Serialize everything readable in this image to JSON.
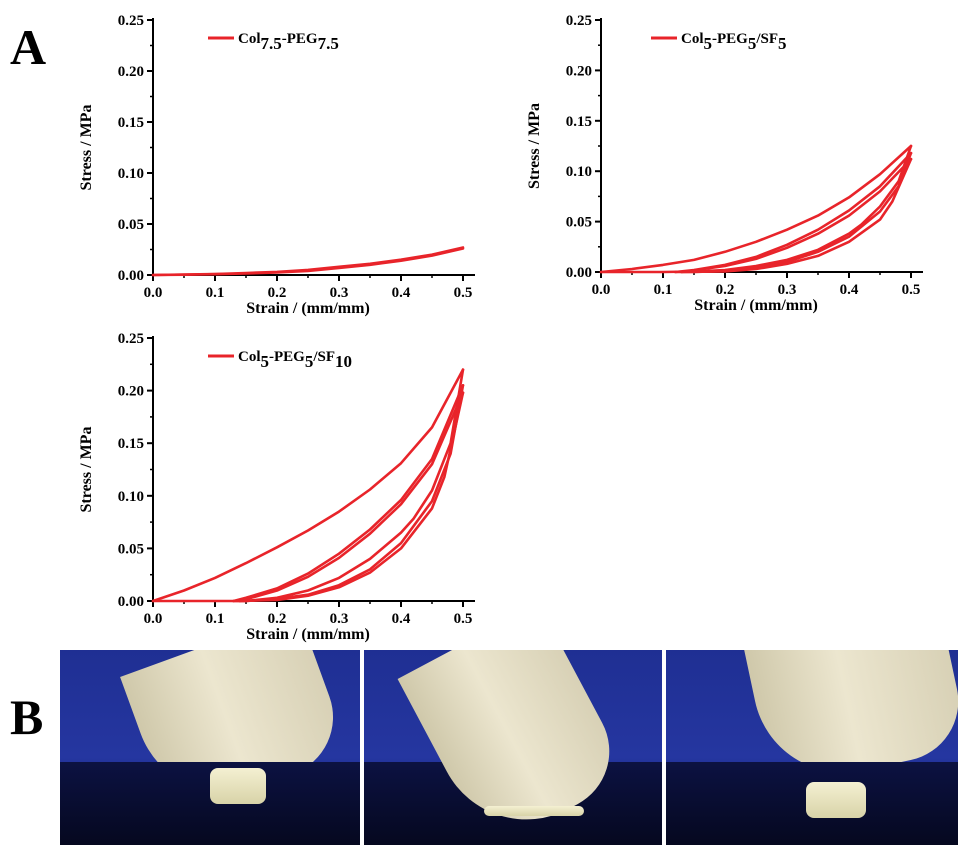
{
  "panel_labels": {
    "a": "A",
    "b": "B"
  },
  "colors": {
    "series": "#e8242a",
    "axis": "#000000"
  },
  "chart_data": [
    {
      "type": "line",
      "panel": "A",
      "legend": {
        "base": "Col",
        "sub1": "7.5",
        "mid": "-PEG",
        "sub2": "7.5",
        "tail": "",
        "sub3": ""
      },
      "legend_position": "top-left",
      "xlabel": "Strain / (mm/mm)",
      "ylabel": "Stress / MPa",
      "xlim": [
        0,
        0.5
      ],
      "ylim": [
        0,
        0.25
      ],
      "xticks": [
        "0.0",
        "0.1",
        "0.2",
        "0.3",
        "0.4",
        "0.5"
      ],
      "yticks": [
        "0.00",
        "0.05",
        "0.10",
        "0.15",
        "0.20",
        "0.25"
      ],
      "cycles": [
        {
          "x": [
            0,
            0.05,
            0.1,
            0.15,
            0.2,
            0.25,
            0.3,
            0.35,
            0.4,
            0.45,
            0.5
          ],
          "y": [
            0,
            0.0005,
            0.001,
            0.002,
            0.003,
            0.005,
            0.008,
            0.011,
            0.015,
            0.02,
            0.027
          ]
        },
        {
          "x": [
            0.5,
            0.45,
            0.4,
            0.35,
            0.3,
            0.25,
            0.2,
            0.15,
            0.1,
            0.05,
            0
          ],
          "y": [
            0.026,
            0.019,
            0.014,
            0.01,
            0.007,
            0.004,
            0.0025,
            0.0015,
            0.0008,
            0.0003,
            0
          ]
        }
      ]
    },
    {
      "type": "line",
      "panel": "A",
      "legend": {
        "base": "Col",
        "sub1": "5",
        "mid": "-PEG",
        "sub2": "5",
        "tail": "/SF",
        "sub3": "5"
      },
      "legend_position": "top-left",
      "xlabel": "Strain / (mm/mm)",
      "ylabel": "Stress / MPa",
      "xlim": [
        0,
        0.5
      ],
      "ylim": [
        0,
        0.25
      ],
      "xticks": [
        "0.0",
        "0.1",
        "0.2",
        "0.3",
        "0.4",
        "0.5"
      ],
      "yticks": [
        "0.00",
        "0.05",
        "0.10",
        "0.15",
        "0.20",
        "0.25"
      ],
      "cycles": [
        {
          "x": [
            0,
            0.05,
            0.1,
            0.15,
            0.2,
            0.25,
            0.3,
            0.35,
            0.4,
            0.45,
            0.5
          ],
          "y": [
            0,
            0.003,
            0.007,
            0.012,
            0.02,
            0.03,
            0.042,
            0.056,
            0.074,
            0.097,
            0.125
          ]
        },
        {
          "x": [
            0.5,
            0.48,
            0.45,
            0.42,
            0.4,
            0.35,
            0.3,
            0.25,
            0.2,
            0.15,
            0.1,
            0
          ],
          "y": [
            0.125,
            0.09,
            0.065,
            0.047,
            0.038,
            0.022,
            0.012,
            0.006,
            0.002,
            0.0005,
            0,
            0
          ]
        },
        {
          "x": [
            0.12,
            0.15,
            0.2,
            0.25,
            0.3,
            0.35,
            0.4,
            0.45,
            0.5
          ],
          "y": [
            0,
            0.002,
            0.007,
            0.015,
            0.027,
            0.042,
            0.061,
            0.085,
            0.118
          ]
        },
        {
          "x": [
            0.5,
            0.48,
            0.45,
            0.4,
            0.35,
            0.3,
            0.25,
            0.2,
            0.15,
            0.12
          ],
          "y": [
            0.118,
            0.085,
            0.06,
            0.035,
            0.02,
            0.01,
            0.004,
            0.001,
            0,
            0
          ]
        },
        {
          "x": [
            0.13,
            0.2,
            0.25,
            0.3,
            0.35,
            0.4,
            0.45,
            0.5
          ],
          "y": [
            0,
            0.006,
            0.013,
            0.024,
            0.038,
            0.056,
            0.08,
            0.112
          ]
        },
        {
          "x": [
            0.5,
            0.47,
            0.45,
            0.4,
            0.35,
            0.3,
            0.25,
            0.2,
            0.13
          ],
          "y": [
            0.112,
            0.07,
            0.052,
            0.03,
            0.016,
            0.008,
            0.003,
            0.0005,
            0
          ]
        }
      ]
    },
    {
      "type": "line",
      "panel": "A",
      "legend": {
        "base": "Col",
        "sub1": "5",
        "mid": "-PEG",
        "sub2": "5",
        "tail": "/SF",
        "sub3": "10"
      },
      "legend_position": "top-left",
      "xlabel": "Strain / (mm/mm)",
      "ylabel": "Stress / MPa",
      "xlim": [
        0,
        0.5
      ],
      "ylim": [
        0,
        0.25
      ],
      "xticks": [
        "0.0",
        "0.1",
        "0.2",
        "0.3",
        "0.4",
        "0.5"
      ],
      "yticks": [
        "0.00",
        "0.05",
        "0.10",
        "0.15",
        "0.20",
        "0.25"
      ],
      "cycles": [
        {
          "x": [
            0,
            0.05,
            0.1,
            0.15,
            0.2,
            0.25,
            0.3,
            0.35,
            0.4,
            0.45,
            0.5
          ],
          "y": [
            0,
            0.01,
            0.022,
            0.036,
            0.051,
            0.067,
            0.085,
            0.106,
            0.131,
            0.165,
            0.22
          ]
        },
        {
          "x": [
            0.5,
            0.48,
            0.45,
            0.42,
            0.4,
            0.35,
            0.3,
            0.25,
            0.2,
            0.15,
            0.1,
            0
          ],
          "y": [
            0.22,
            0.15,
            0.105,
            0.078,
            0.065,
            0.04,
            0.022,
            0.01,
            0.003,
            0,
            0,
            0
          ]
        },
        {
          "x": [
            0.13,
            0.15,
            0.2,
            0.25,
            0.3,
            0.35,
            0.4,
            0.45,
            0.5
          ],
          "y": [
            0,
            0.003,
            0.012,
            0.026,
            0.045,
            0.068,
            0.096,
            0.135,
            0.205
          ]
        },
        {
          "x": [
            0.5,
            0.48,
            0.45,
            0.4,
            0.35,
            0.3,
            0.25,
            0.2,
            0.15,
            0.13
          ],
          "y": [
            0.205,
            0.14,
            0.095,
            0.055,
            0.03,
            0.015,
            0.006,
            0.002,
            0,
            0
          ]
        },
        {
          "x": [
            0.14,
            0.2,
            0.25,
            0.3,
            0.35,
            0.4,
            0.45,
            0.5
          ],
          "y": [
            0,
            0.01,
            0.023,
            0.041,
            0.064,
            0.092,
            0.13,
            0.198
          ]
        },
        {
          "x": [
            0.5,
            0.47,
            0.45,
            0.4,
            0.35,
            0.3,
            0.25,
            0.2,
            0.14
          ],
          "y": [
            0.198,
            0.118,
            0.088,
            0.05,
            0.027,
            0.013,
            0.005,
            0.001,
            0
          ]
        }
      ]
    }
  ]
}
